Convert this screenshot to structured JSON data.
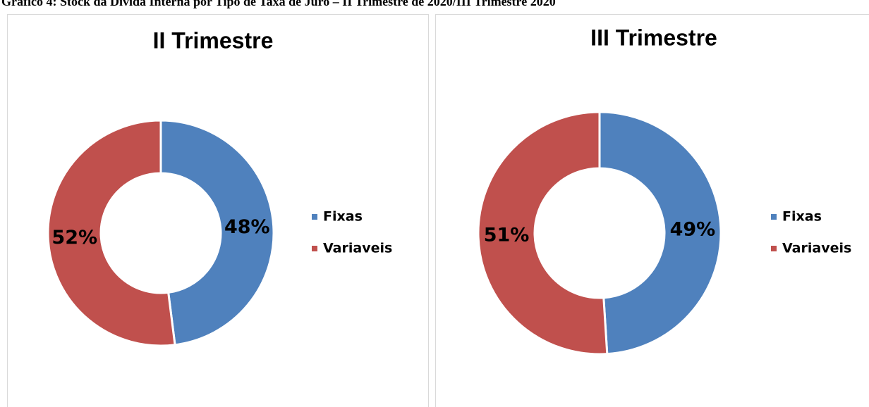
{
  "title": "Gráfico 4: Stock da Dívida Interna por Tipo de Taxa de Juro – II Trimestre de 2020/III Trimestre 2020",
  "chart_data": [
    {
      "type": "pie",
      "title": "II Trimestre",
      "categories": [
        "Fixas",
        "Variaveis"
      ],
      "values": [
        48,
        52
      ],
      "value_labels": [
        "48%",
        "52%"
      ],
      "colors": [
        "#4f81bd",
        "#c0504d"
      ],
      "legend": "right"
    },
    {
      "type": "pie",
      "title": "III Trimestre",
      "categories": [
        "Fixas",
        "Variaveis"
      ],
      "values": [
        49,
        51
      ],
      "value_labels": [
        "49%",
        "51%"
      ],
      "colors": [
        "#4f81bd",
        "#c0504d"
      ],
      "legend": "right"
    }
  ]
}
